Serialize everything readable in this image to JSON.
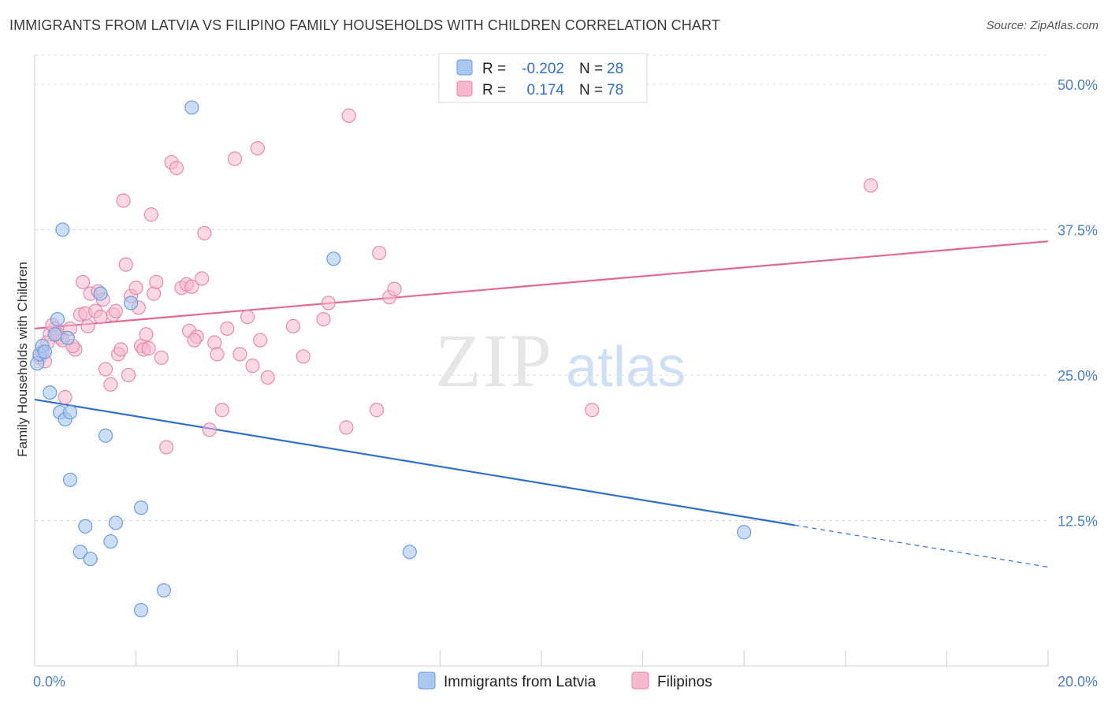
{
  "header": {
    "title": "IMMIGRANTS FROM LATVIA VS FILIPINO FAMILY HOUSEHOLDS WITH CHILDREN CORRELATION CHART",
    "source": "Source: ZipAtlas.com"
  },
  "watermark": {
    "zip": "ZIP",
    "atlas": "atlas"
  },
  "colors": {
    "latvia_fill": "#a9c8f0",
    "latvia_stroke": "#6a9ee0",
    "latvia_line": "#2f6fd0",
    "filipino_fill": "#f7b8cd",
    "filipino_stroke": "#e68aa9",
    "filipino_line": "#e06a94",
    "axis_text": "#4a7fc8",
    "grid": "#d9d9d9"
  },
  "legend": {
    "rows": [
      {
        "r_label": "R =",
        "r_value": "-0.202",
        "n_label": "N =",
        "n_value": "28"
      },
      {
        "r_label": "R =",
        "r_value": "0.174",
        "n_label": "N =",
        "n_value": "78"
      }
    ]
  },
  "chart_data": {
    "type": "scatter",
    "title": "IMMIGRANTS FROM LATVIA VS FILIPINO FAMILY HOUSEHOLDS WITH CHILDREN CORRELATION CHART",
    "xlabel": "",
    "ylabel": "Family Households with Children",
    "xlim": [
      0,
      20
    ],
    "ylim": [
      0,
      52.5
    ],
    "x_tick_labels": [
      "0.0%",
      "20.0%"
    ],
    "y_ticks": [
      12.5,
      25.0,
      37.5,
      50.0
    ],
    "y_tick_labels": [
      "12.5%",
      "25.0%",
      "37.5%",
      "50.0%"
    ],
    "grid": true,
    "legend_position": "top-center",
    "series": [
      {
        "name": "Immigrants from Latvia",
        "r": -0.202,
        "n": 28,
        "points": [
          [
            0.05,
            26.0
          ],
          [
            0.1,
            26.8
          ],
          [
            0.15,
            27.5
          ],
          [
            0.3,
            23.5
          ],
          [
            0.4,
            28.5
          ],
          [
            0.45,
            29.8
          ],
          [
            0.5,
            21.8
          ],
          [
            0.55,
            37.5
          ],
          [
            0.6,
            21.2
          ],
          [
            0.65,
            28.2
          ],
          [
            0.7,
            21.8
          ],
          [
            0.7,
            16.0
          ],
          [
            0.9,
            9.8
          ],
          [
            1.0,
            12.0
          ],
          [
            1.1,
            9.2
          ],
          [
            1.3,
            32.0
          ],
          [
            1.4,
            19.8
          ],
          [
            1.5,
            10.7
          ],
          [
            1.6,
            12.3
          ],
          [
            1.9,
            31.2
          ],
          [
            2.1,
            13.6
          ],
          [
            2.1,
            4.8
          ],
          [
            2.55,
            6.5
          ],
          [
            3.1,
            48.0
          ],
          [
            5.9,
            35.0
          ],
          [
            7.4,
            9.8
          ],
          [
            14.0,
            11.5
          ],
          [
            0.2,
            27.0
          ]
        ],
        "trend": {
          "x0": 0,
          "y0": 22.9,
          "x1": 15.0,
          "y1": 12.1,
          "dash_to_x": 20.0,
          "dash_to_y": 8.5
        }
      },
      {
        "name": "Filipinos",
        "r": 0.174,
        "n": 78,
        "points": [
          [
            0.1,
            26.5
          ],
          [
            0.15,
            27.0
          ],
          [
            0.2,
            26.2
          ],
          [
            0.3,
            28.5
          ],
          [
            0.4,
            29.0
          ],
          [
            0.5,
            28.2
          ],
          [
            0.6,
            23.1
          ],
          [
            0.7,
            29.0
          ],
          [
            0.8,
            27.2
          ],
          [
            0.9,
            30.2
          ],
          [
            0.95,
            33.0
          ],
          [
            1.0,
            30.3
          ],
          [
            1.05,
            29.2
          ],
          [
            1.1,
            32.0
          ],
          [
            1.2,
            30.5
          ],
          [
            1.3,
            30.0
          ],
          [
            1.35,
            31.5
          ],
          [
            1.4,
            25.5
          ],
          [
            1.5,
            24.2
          ],
          [
            1.55,
            30.2
          ],
          [
            1.6,
            30.5
          ],
          [
            1.65,
            26.8
          ],
          [
            1.7,
            27.2
          ],
          [
            1.75,
            40.0
          ],
          [
            1.8,
            34.5
          ],
          [
            1.85,
            25.0
          ],
          [
            1.9,
            31.8
          ],
          [
            2.0,
            32.5
          ],
          [
            2.05,
            30.8
          ],
          [
            2.1,
            27.5
          ],
          [
            2.15,
            27.2
          ],
          [
            2.2,
            28.5
          ],
          [
            2.3,
            38.8
          ],
          [
            2.35,
            32.0
          ],
          [
            2.4,
            33.0
          ],
          [
            2.5,
            26.5
          ],
          [
            2.6,
            18.8
          ],
          [
            2.7,
            43.3
          ],
          [
            2.8,
            42.8
          ],
          [
            2.9,
            32.5
          ],
          [
            3.0,
            32.8
          ],
          [
            3.05,
            28.8
          ],
          [
            3.1,
            32.6
          ],
          [
            3.2,
            28.3
          ],
          [
            3.3,
            33.3
          ],
          [
            3.35,
            37.2
          ],
          [
            3.45,
            20.3
          ],
          [
            3.55,
            27.8
          ],
          [
            3.6,
            26.8
          ],
          [
            3.7,
            22.0
          ],
          [
            3.8,
            29.0
          ],
          [
            3.95,
            43.6
          ],
          [
            4.05,
            26.8
          ],
          [
            4.2,
            30.0
          ],
          [
            4.3,
            25.8
          ],
          [
            4.4,
            44.5
          ],
          [
            4.45,
            28.0
          ],
          [
            4.6,
            24.8
          ],
          [
            5.1,
            29.2
          ],
          [
            5.3,
            26.6
          ],
          [
            5.7,
            29.8
          ],
          [
            5.8,
            31.2
          ],
          [
            6.15,
            20.5
          ],
          [
            6.2,
            47.3
          ],
          [
            6.75,
            22.0
          ],
          [
            6.8,
            35.5
          ],
          [
            7.0,
            31.7
          ],
          [
            7.1,
            32.4
          ],
          [
            11.0,
            22.0
          ],
          [
            16.5,
            41.3
          ],
          [
            0.25,
            27.8
          ],
          [
            0.35,
            29.3
          ],
          [
            0.45,
            28.5
          ],
          [
            0.55,
            28.0
          ],
          [
            0.75,
            27.5
          ],
          [
            1.25,
            32.2
          ],
          [
            2.25,
            27.3
          ],
          [
            3.15,
            28.0
          ]
        ],
        "trend": {
          "x0": 0,
          "y0": 29.0,
          "x1": 20.0,
          "y1": 36.5
        }
      }
    ]
  }
}
